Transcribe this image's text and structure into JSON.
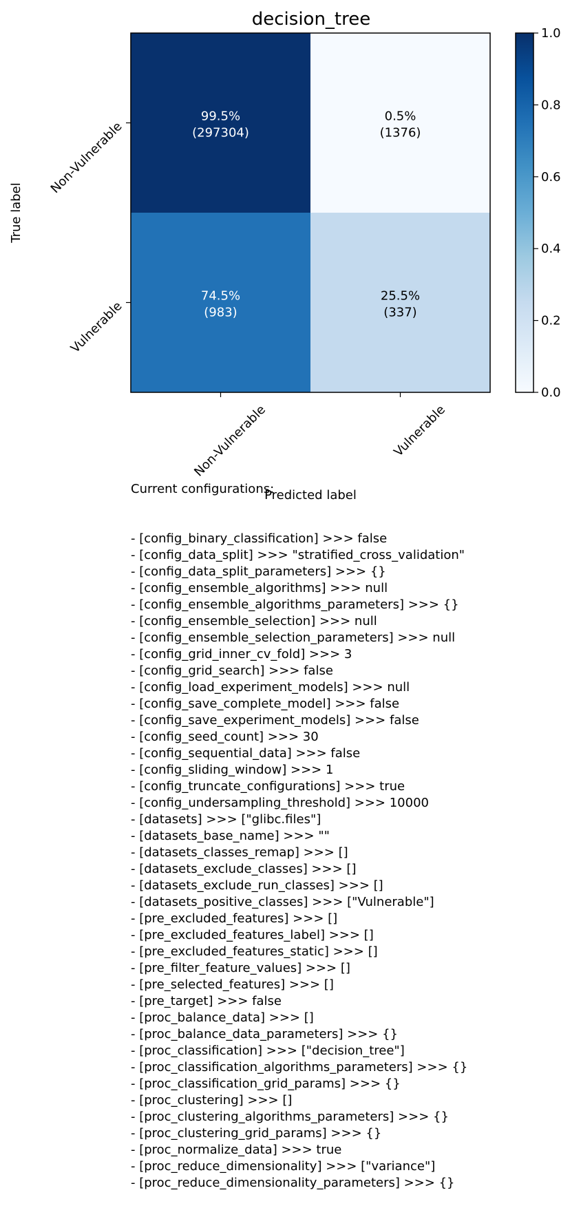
{
  "chart_data": {
    "type": "heatmap",
    "title": "decision_tree",
    "xlabel": "Predicted label",
    "ylabel": "True label",
    "x_categories": [
      "Non-Vulnerable",
      "Vulnerable"
    ],
    "y_categories": [
      "Non-Vulnerable",
      "Vulnerable"
    ],
    "matrix": [
      [
        0.995,
        0.005
      ],
      [
        0.745,
        0.255
      ]
    ],
    "cell_labels": [
      [
        {
          "pct": "99.5%",
          "count": "(297304)"
        },
        {
          "pct": "0.5%",
          "count": "(1376)"
        }
      ],
      [
        {
          "pct": "74.5%",
          "count": "(983)"
        },
        {
          "pct": "25.5%",
          "count": "(337)"
        }
      ]
    ],
    "colormap": "Blues",
    "colorbar": {
      "range": [
        0.0,
        1.0
      ],
      "ticks": [
        0.0,
        0.2,
        0.4,
        0.6,
        0.8,
        1.0
      ],
      "tick_labels": [
        "0.0",
        "0.2",
        "0.4",
        "0.6",
        "0.8",
        "1.0"
      ]
    }
  },
  "config_text": {
    "heading": "Current configurations:",
    "lines": [
      "- [config_binary_classification] >>> false",
      "- [config_data_split] >>> \"stratified_cross_validation\"",
      "- [config_data_split_parameters] >>> {}",
      "- [config_ensemble_algorithms] >>> null",
      "- [config_ensemble_algorithms_parameters] >>> {}",
      "- [config_ensemble_selection] >>> null",
      "- [config_ensemble_selection_parameters] >>> null",
      "- [config_grid_inner_cv_fold] >>> 3",
      "- [config_grid_search] >>> false",
      "- [config_load_experiment_models] >>> null",
      "- [config_save_complete_model] >>> false",
      "- [config_save_experiment_models] >>> false",
      "- [config_seed_count] >>> 30",
      "- [config_sequential_data] >>> false",
      "- [config_sliding_window] >>> 1",
      "- [config_truncate_configurations] >>> true",
      "- [config_undersampling_threshold] >>> 10000",
      "- [datasets] >>> [\"glibc.files\"]",
      "- [datasets_base_name] >>> \"\"",
      "- [datasets_classes_remap] >>> []",
      "- [datasets_exclude_classes] >>> []",
      "- [datasets_exclude_run_classes] >>> []",
      "- [datasets_positive_classes] >>> [\"Vulnerable\"]",
      "- [pre_excluded_features] >>> []",
      "- [pre_excluded_features_label] >>> []",
      "- [pre_excluded_features_static] >>> []",
      "- [pre_filter_feature_values] >>> []",
      "- [pre_selected_features] >>> []",
      "- [pre_target] >>> false",
      "- [proc_balance_data] >>> []",
      "- [proc_balance_data_parameters] >>> {}",
      "- [proc_classification] >>> [\"decision_tree\"]",
      "- [proc_classification_algorithms_parameters] >>> {}",
      "- [proc_classification_grid_params] >>> {}",
      "- [proc_clustering] >>> []",
      "- [proc_clustering_algorithms_parameters] >>> {}",
      "- [proc_clustering_grid_params] >>> {}",
      "- [proc_normalize_data] >>> true",
      "- [proc_reduce_dimensionality] >>> [\"variance\"]",
      "- [proc_reduce_dimensionality_parameters] >>> {}"
    ]
  }
}
